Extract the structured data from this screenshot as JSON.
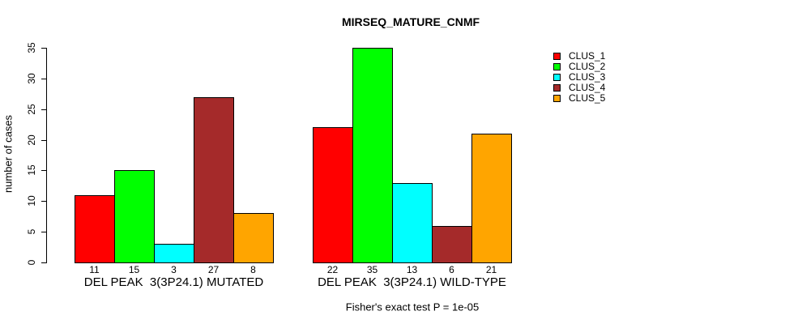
{
  "title": "MIRSEQ_MATURE_CNMF",
  "caption": "Fisher's exact test P = 1e-05",
  "y_axis": {
    "label": "number of cases"
  },
  "legend": {
    "position": "right",
    "items": [
      {
        "label": "CLUS_1",
        "color": "#FF0000"
      },
      {
        "label": "CLUS_2",
        "color": "#00FF00"
      },
      {
        "label": "CLUS_3",
        "color": "#00FFFF"
      },
      {
        "label": "CLUS_4",
        "color": "#A52A2A"
      },
      {
        "label": "CLUS_5",
        "color": "#FFA500"
      }
    ]
  },
  "chart_data": {
    "type": "bar",
    "title": "MIRSEQ_MATURE_CNMF",
    "xlabel": "",
    "ylabel": "number of cases",
    "ylim": [
      0,
      35
    ],
    "yticks": [
      0,
      5,
      10,
      15,
      20,
      25,
      30,
      35
    ],
    "grid": false,
    "legend_position": "right",
    "bar_borders": true,
    "bar_value_labels_shown": true,
    "annotation": "Fisher's exact test P = 1e-05",
    "categories": [
      "DEL PEAK  3(3P24.1) MUTATED",
      "DEL PEAK  3(3P24.1) WILD-TYPE"
    ],
    "series": [
      {
        "name": "CLUS_1",
        "color": "#FF0000",
        "values": [
          11,
          22
        ]
      },
      {
        "name": "CLUS_2",
        "color": "#00FF00",
        "values": [
          15,
          35
        ]
      },
      {
        "name": "CLUS_3",
        "color": "#00FFFF",
        "values": [
          3,
          13
        ]
      },
      {
        "name": "CLUS_4",
        "color": "#A52A2A",
        "values": [
          27,
          6
        ]
      },
      {
        "name": "CLUS_5",
        "color": "#FFA500",
        "values": [
          8,
          21
        ]
      }
    ],
    "groups": [
      {
        "label": "DEL PEAK  3(3P24.1) MUTATED",
        "values": [
          11,
          15,
          3,
          27,
          8
        ]
      },
      {
        "label": "DEL PEAK  3(3P24.1) WILD-TYPE",
        "values": [
          22,
          35,
          13,
          6,
          21
        ]
      }
    ]
  }
}
